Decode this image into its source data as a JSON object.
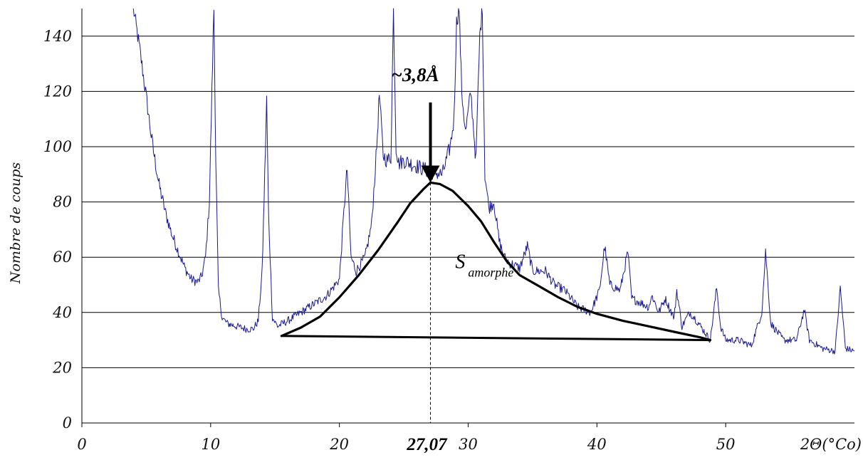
{
  "chart_data": {
    "type": "line",
    "title": "",
    "xlabel": "2Θ(°Co)",
    "ylabel": "Nombre de coups",
    "xlim": [
      0,
      60
    ],
    "ylim": [
      0,
      150
    ],
    "x_ticks": [
      "0",
      "10",
      "20",
      "30",
      "40",
      "50"
    ],
    "y_ticks": [
      "0",
      "20",
      "40",
      "60",
      "80",
      "100",
      "120",
      "140"
    ],
    "grid": "horizontal",
    "colors": {
      "series": "#1a1a8c",
      "annotation": "#000000"
    },
    "series": [
      {
        "name": "",
        "x": [
          4.0,
          4.5,
          5.0,
          5.5,
          6.0,
          6.5,
          7.0,
          7.5,
          8.0,
          8.5,
          9.0,
          9.3,
          9.6,
          9.9,
          10.1,
          10.25,
          10.4,
          10.6,
          10.9,
          11.3,
          12.0,
          12.8,
          13.3,
          13.7,
          14.0,
          14.2,
          14.35,
          14.5,
          14.8,
          15.2,
          16.0,
          17.0,
          18.0,
          19.0,
          20.0,
          20.4,
          20.6,
          20.9,
          21.3,
          22.0,
          22.5,
          22.9,
          23.1,
          23.4,
          23.7,
          24.0,
          24.2,
          24.4,
          24.6,
          25.0,
          26.0,
          27.0,
          28.0,
          28.6,
          28.9,
          29.1,
          29.3,
          29.5,
          29.8,
          30.2,
          30.6,
          30.9,
          31.1,
          31.3,
          31.6,
          32.0,
          32.4,
          32.8,
          33.2,
          34.0,
          34.6,
          35.0,
          36.0,
          36.7,
          37.5,
          38.5,
          39.5,
          40.2,
          40.6,
          41.0,
          41.8,
          42.4,
          42.7,
          43.2,
          44.0,
          44.3,
          44.8,
          45.3,
          46.0,
          46.2,
          46.6,
          47.2,
          47.6,
          48.2,
          48.8,
          49.3,
          49.6,
          50.0,
          51.0,
          52.0,
          52.8,
          53.1,
          53.5,
          54.5,
          55.5,
          56.1,
          56.5,
          57.5,
          58.5,
          58.9,
          59.3,
          60.0
        ],
        "y": [
          150,
          135,
          118,
          100,
          86,
          76,
          68,
          62,
          56,
          52,
          51,
          53,
          60,
          80,
          120,
          150,
          95,
          48,
          38,
          36,
          35,
          34,
          34,
          37,
          55,
          90,
          117,
          75,
          38,
          35,
          37,
          40,
          43,
          46,
          52,
          80,
          92,
          60,
          55,
          60,
          72,
          100,
          119,
          97,
          95,
          96,
          150,
          100,
          94,
          95,
          93,
          91,
          90,
          100,
          110,
          145,
          150,
          120,
          105,
          120,
          95,
          140,
          150,
          90,
          78,
          80,
          66,
          60,
          58,
          56,
          64,
          55,
          55,
          50,
          48,
          42,
          40,
          48,
          64,
          50,
          48,
          62,
          45,
          44,
          42,
          46,
          40,
          45,
          38,
          48,
          35,
          40,
          38,
          34,
          30,
          49,
          35,
          30,
          30,
          28,
          40,
          62,
          36,
          30,
          30,
          41,
          30,
          27,
          26,
          49,
          27,
          26
        ]
      }
    ],
    "annotations": {
      "peak_label": "~3,8Å",
      "peak_position_label": "27,07",
      "amorphous_label": "S",
      "amorphous_subscript": "amorphe",
      "peak_x": 27.07,
      "peak_y": 87,
      "arrow_from_y": 116,
      "amorphous_hump": {
        "x": [
          15.5,
          17.0,
          18.5,
          20.0,
          21.5,
          23.0,
          24.5,
          25.5,
          26.5,
          27.07,
          27.8,
          28.8,
          30.0,
          31.0,
          32.0,
          33.0,
          34.0,
          35.5,
          37.0,
          38.5,
          40.0,
          42.0,
          44.0,
          46.0,
          48.0,
          48.8
        ],
        "y": [
          31.5,
          34.5,
          38.5,
          45.5,
          53.5,
          62.5,
          72.5,
          79.5,
          84.5,
          87.0,
          86.5,
          84.0,
          78.5,
          73.0,
          65.5,
          58.5,
          53.5,
          49.5,
          45.5,
          42.0,
          39.5,
          37.0,
          35.0,
          33.0,
          31.0,
          30.0
        ]
      },
      "baseline": {
        "x": [
          15.5,
          48.8
        ],
        "y": [
          31.5,
          30.0
        ]
      }
    }
  }
}
